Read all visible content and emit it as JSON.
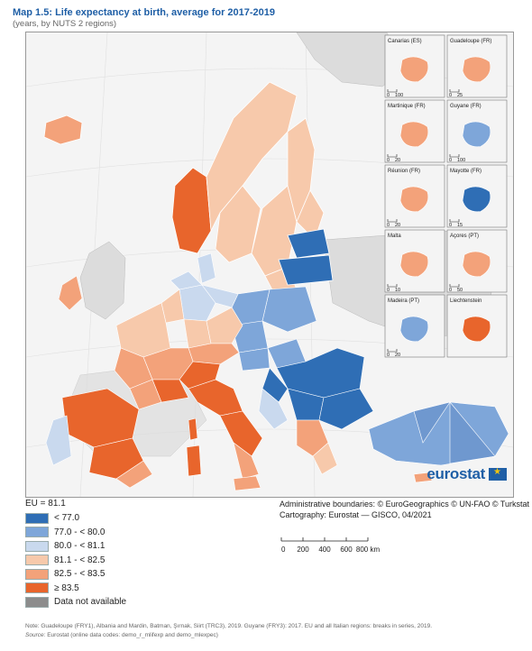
{
  "title": {
    "label": "Map 1.5:",
    "main": "Life expectancy at birth, average for 2017-2019"
  },
  "subtitle": "(years, by NUTS 2 regions)",
  "colors": {
    "c1": "#2f6eb5",
    "c2": "#7ea6d9",
    "c3": "#c9d9ee",
    "c4": "#f7c9ab",
    "c5": "#f3a27a",
    "c6": "#e8652c",
    "c7": "#8c8c8c",
    "sea": "#ffffff",
    "land_other": "#dcdcdc"
  },
  "legend": {
    "eu": "EU = 81.1",
    "items": [
      {
        "label": "< 77.0",
        "color": "#2f6eb5"
      },
      {
        "label": "77.0 - < 80.0",
        "color": "#7ea6d9"
      },
      {
        "label": "80.0 - < 81.1",
        "color": "#c9d9ee"
      },
      {
        "label": "81.1 - < 82.5",
        "color": "#f7c9ab"
      },
      {
        "label": "82.5 - < 83.5",
        "color": "#f3a27a"
      },
      {
        "label": "≥ 83.5",
        "color": "#e8652c"
      },
      {
        "label": "Data not available",
        "color": "#8c8c8c"
      }
    ]
  },
  "insets": [
    {
      "name": "Canarias (ES)",
      "scale": "100"
    },
    {
      "name": "Guadeloupe (FR)",
      "scale": "25"
    },
    {
      "name": "Martinique (FR)",
      "scale": "20"
    },
    {
      "name": "Guyane (FR)",
      "scale": "100"
    },
    {
      "name": "Réunion (FR)",
      "scale": "20"
    },
    {
      "name": "Mayotte (FR)",
      "scale": "15"
    },
    {
      "name": "Malta",
      "scale": "10"
    },
    {
      "name": "Açores (PT)",
      "scale": "50"
    },
    {
      "name": "Madeira (PT)",
      "scale": "20"
    },
    {
      "name": "Liechtenstein",
      "scale": ""
    }
  ],
  "credits": {
    "line1": "Administrative boundaries: © EuroGeographics © UN-FAO © Turkstat",
    "line2": "Cartography: Eurostat — GISCO, 04/2021"
  },
  "scalebar": {
    "ticks": [
      "0",
      "200",
      "400",
      "600",
      "800 km"
    ]
  },
  "brand": "eurostat",
  "note": "Note: Guadeloupe (FRY1), Albania and Mardin, Batman, Şırnak, Siirt (TRC3), 2019. Guyane (FRY3): 2017. EU and all Italian regions: breaks in series, 2019.",
  "source": {
    "prefix": "Source:",
    "text": "Eurostat (online data codes: demo_r_mlifexp and demo_mlexpec)"
  }
}
